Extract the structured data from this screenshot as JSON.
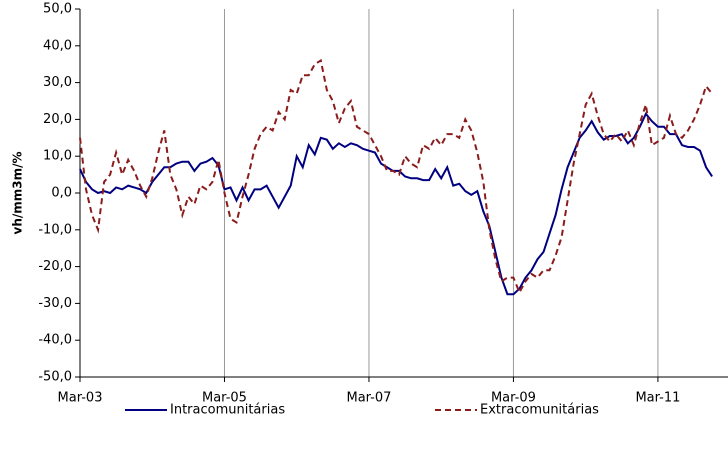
{
  "chart_data": {
    "type": "line",
    "y_label": "vh/mm3m/%",
    "categories": [
      "Mar-03",
      null,
      null,
      null,
      null,
      null,
      null,
      null,
      null,
      null,
      null,
      null,
      null,
      null,
      null,
      null,
      null,
      null,
      null,
      null,
      null,
      null,
      null,
      null,
      "Mar-05",
      null,
      null,
      null,
      null,
      null,
      null,
      null,
      null,
      null,
      null,
      null,
      null,
      null,
      null,
      null,
      null,
      null,
      null,
      null,
      null,
      null,
      null,
      null,
      "Mar-07",
      null,
      null,
      null,
      null,
      null,
      null,
      null,
      null,
      null,
      null,
      null,
      null,
      null,
      null,
      null,
      null,
      null,
      null,
      null,
      null,
      null,
      null,
      null,
      "Mar-09",
      null,
      null,
      null,
      null,
      null,
      null,
      null,
      null,
      null,
      null,
      null,
      null,
      null,
      null,
      null,
      null,
      null,
      null,
      null,
      null,
      null,
      null,
      null,
      "Mar-11",
      null,
      null,
      null,
      null,
      null,
      null,
      null,
      null,
      null
    ],
    "series": [
      {
        "name": "Intracomunitárias",
        "color": "#000080",
        "dash": false,
        "values": [
          6.5,
          3,
          1,
          0,
          0.5,
          0,
          1.5,
          1,
          2,
          1.5,
          1,
          0,
          3,
          5,
          7,
          7,
          8,
          8.5,
          8.5,
          6,
          8,
          8.5,
          9.5,
          7.5,
          1,
          1.5,
          -2,
          1.5,
          -2,
          1,
          1,
          2,
          -1,
          -4,
          -1,
          2,
          10,
          7,
          13,
          10.5,
          15,
          14.5,
          12,
          13.5,
          12.5,
          13.5,
          13,
          12,
          11.5,
          11,
          8,
          7,
          6,
          6,
          4.5,
          4,
          4,
          3.5,
          3.5,
          6.5,
          4,
          7,
          2,
          2.5,
          0.5,
          -0.5,
          0.5,
          -5,
          -9,
          -16,
          -23,
          -27.5,
          -27.5,
          -26,
          -23,
          -21,
          -18,
          -16,
          -11,
          -6,
          1,
          7,
          11,
          15,
          17,
          19.5,
          16.5,
          14.5,
          15.5,
          15.5,
          16,
          13.5,
          15,
          18,
          21.5,
          19.5,
          18,
          18,
          16,
          16,
          13,
          12.5,
          12.5,
          11.5,
          7,
          4.5
        ]
      },
      {
        "name": "Extracomunitárias",
        "color": "#8b1c1c",
        "dash": true,
        "values": [
          15,
          1,
          -6,
          -10,
          3,
          5,
          11,
          5,
          9,
          6,
          2,
          -1,
          4,
          11,
          17,
          5,
          1,
          -6,
          -1,
          -3,
          2,
          1,
          3,
          9,
          0,
          -7,
          -8,
          -1,
          5,
          12,
          16,
          18,
          17,
          22,
          20,
          28,
          27,
          32,
          32,
          35,
          36,
          28,
          25,
          19,
          23,
          25,
          18,
          17,
          16,
          13,
          10,
          6,
          6,
          5,
          10,
          8,
          7,
          13,
          12,
          15,
          13,
          16,
          16,
          15,
          20,
          17,
          11,
          3,
          -10,
          -18,
          -24,
          -23,
          -23,
          -27,
          -24,
          -22,
          -23,
          -21,
          -21,
          -17,
          -12,
          -2,
          8,
          16,
          24,
          27,
          21,
          16,
          14,
          16,
          14,
          17,
          13,
          19,
          24,
          13,
          14,
          15,
          21,
          16,
          15,
          17,
          20,
          24,
          29,
          27
        ]
      }
    ],
    "ylim": [
      -50,
      50
    ],
    "yticks": [
      {
        "value": -50,
        "label": "-50,0"
      },
      {
        "value": -40,
        "label": "-40,0"
      },
      {
        "value": -30,
        "label": "-30,0"
      },
      {
        "value": -20,
        "label": "-20,0"
      },
      {
        "value": -10,
        "label": "-10,0"
      },
      {
        "value": 0,
        "label": "0,0"
      },
      {
        "value": 10,
        "label": "10,0"
      },
      {
        "value": 20,
        "label": "20,0"
      },
      {
        "value": 30,
        "label": "30,0"
      },
      {
        "value": 40,
        "label": "40,0"
      },
      {
        "value": 50,
        "label": "50,0"
      }
    ],
    "grid": true,
    "legend": "bottom"
  }
}
